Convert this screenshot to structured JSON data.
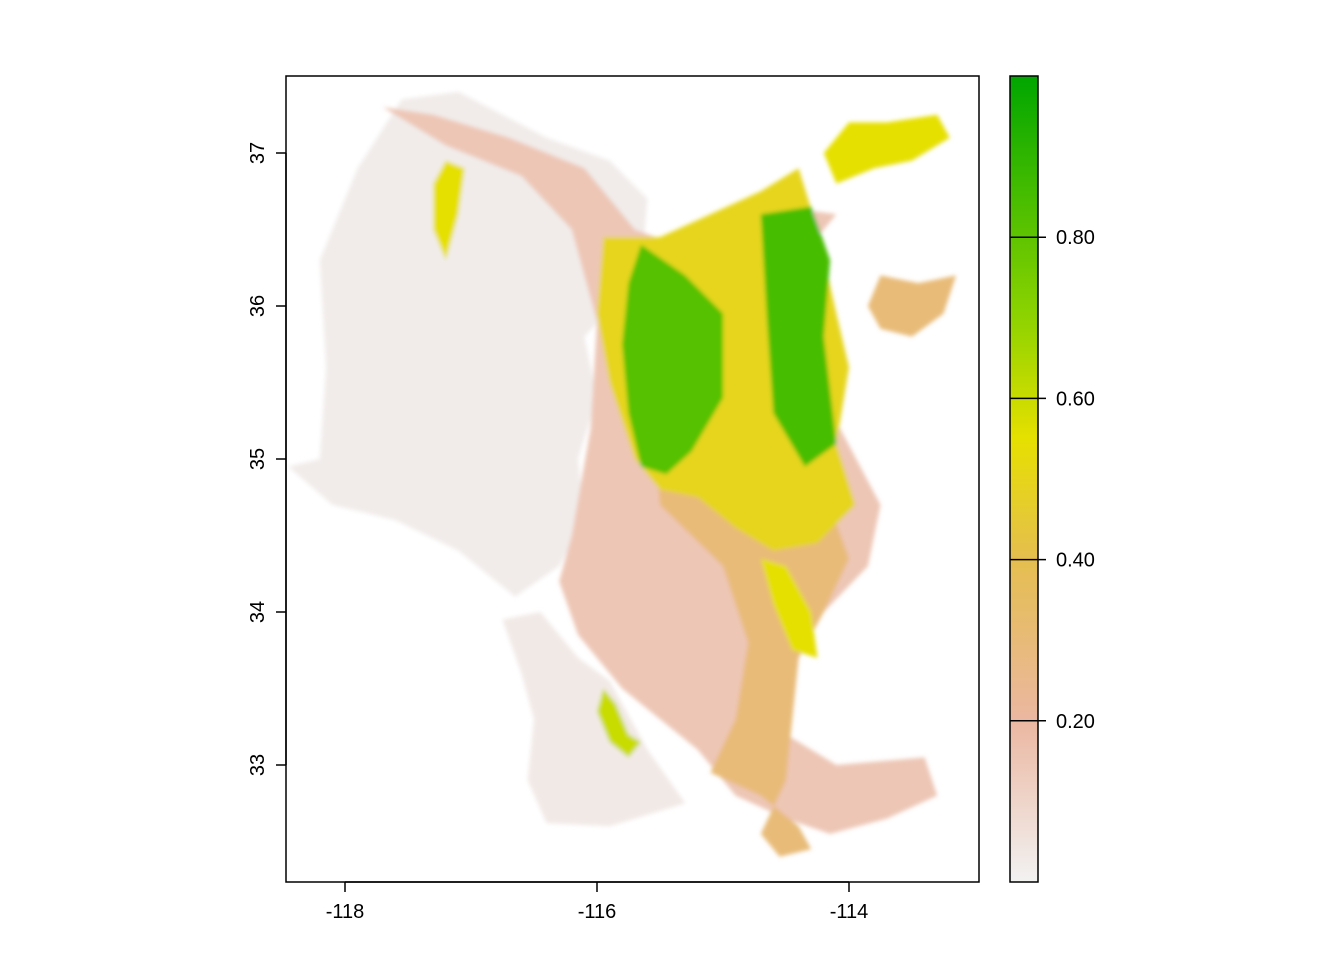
{
  "chart_data": {
    "type": "heatmap",
    "title": "",
    "xlabel": "",
    "ylabel": "",
    "xlim": [
      -118.5,
      -112.7
    ],
    "ylim": [
      32.25,
      37.5
    ],
    "x_ticks": [
      -118,
      -116,
      -114
    ],
    "x_tick_labels": [
      "-118",
      "-116",
      "-114"
    ],
    "y_ticks": [
      33,
      34,
      35,
      36,
      37
    ],
    "y_tick_labels": [
      "33",
      "34",
      "35",
      "36",
      "37"
    ],
    "legend": {
      "type": "continuous colorbar",
      "placement": "right",
      "range": [
        0,
        1
      ],
      "ticks": [
        0.2,
        0.4,
        0.6,
        0.8
      ],
      "tick_labels": [
        "0.20",
        "0.40",
        "0.60",
        "0.80"
      ],
      "colors": [
        "#f2f2f2",
        "#ebb7a1",
        "#e5be4f",
        "#e6e000",
        "#8ed300",
        "#00a600"
      ]
    },
    "series": [],
    "regions": [
      {
        "level": 0.02,
        "points": [
          [
            -118.45,
            34.95
          ],
          [
            -118.2,
            35.0
          ],
          [
            -118.15,
            35.6
          ],
          [
            -118.2,
            36.3
          ],
          [
            -117.9,
            36.9
          ],
          [
            -117.55,
            37.35
          ],
          [
            -117.1,
            37.4
          ],
          [
            -116.4,
            37.1
          ],
          [
            -115.9,
            36.95
          ],
          [
            -115.6,
            36.7
          ],
          [
            -115.65,
            36.2
          ],
          [
            -116.1,
            35.8
          ],
          [
            -116.0,
            35.4
          ],
          [
            -116.15,
            35.0
          ],
          [
            -116.1,
            34.6
          ],
          [
            -116.3,
            34.3
          ],
          [
            -116.65,
            34.1
          ],
          [
            -117.1,
            34.4
          ],
          [
            -117.6,
            34.6
          ],
          [
            -118.1,
            34.7
          ]
        ]
      },
      {
        "level": 0.03,
        "points": [
          [
            -116.75,
            33.95
          ],
          [
            -116.45,
            34.0
          ],
          [
            -116.15,
            33.7
          ],
          [
            -115.9,
            33.55
          ],
          [
            -115.6,
            33.1
          ],
          [
            -115.3,
            32.75
          ],
          [
            -115.9,
            32.6
          ],
          [
            -116.4,
            32.62
          ],
          [
            -116.55,
            32.9
          ],
          [
            -116.5,
            33.3
          ],
          [
            -116.6,
            33.6
          ]
        ]
      },
      {
        "level": 0.15,
        "points": [
          [
            -117.7,
            37.3
          ],
          [
            -117.2,
            37.05
          ],
          [
            -116.6,
            36.85
          ],
          [
            -116.2,
            36.5
          ],
          [
            -116.0,
            35.9
          ],
          [
            -116.05,
            35.2
          ],
          [
            -116.2,
            34.5
          ],
          [
            -116.3,
            34.2
          ],
          [
            -116.15,
            33.85
          ],
          [
            -115.8,
            33.5
          ],
          [
            -115.2,
            33.1
          ],
          [
            -114.9,
            32.8
          ],
          [
            -114.5,
            32.65
          ],
          [
            -114.15,
            32.55
          ],
          [
            -113.7,
            32.65
          ],
          [
            -113.3,
            32.8
          ],
          [
            -113.4,
            33.05
          ],
          [
            -114.1,
            33.0
          ],
          [
            -114.5,
            33.2
          ],
          [
            -114.4,
            33.7
          ],
          [
            -114.2,
            34.0
          ],
          [
            -113.85,
            34.3
          ],
          [
            -113.75,
            34.7
          ],
          [
            -114.2,
            35.4
          ],
          [
            -114.5,
            36.2
          ],
          [
            -114.1,
            36.6
          ],
          [
            -114.55,
            36.65
          ],
          [
            -114.7,
            36.3
          ],
          [
            -115.2,
            36.35
          ],
          [
            -115.7,
            36.5
          ],
          [
            -116.1,
            36.9
          ],
          [
            -116.7,
            37.1
          ],
          [
            -117.3,
            37.25
          ]
        ]
      },
      {
        "level": 0.3,
        "points": [
          [
            -115.5,
            34.7
          ],
          [
            -115.0,
            34.3
          ],
          [
            -114.8,
            33.8
          ],
          [
            -114.9,
            33.3
          ],
          [
            -115.1,
            32.95
          ],
          [
            -114.7,
            32.8
          ],
          [
            -114.4,
            32.6
          ],
          [
            -114.3,
            32.45
          ],
          [
            -114.55,
            32.4
          ],
          [
            -114.7,
            32.55
          ],
          [
            -114.5,
            32.9
          ],
          [
            -114.45,
            33.3
          ],
          [
            -114.4,
            33.7
          ],
          [
            -114.2,
            34.0
          ],
          [
            -114.0,
            34.35
          ],
          [
            -114.2,
            34.8
          ],
          [
            -114.25,
            35.4
          ],
          [
            -114.3,
            35.9
          ],
          [
            -114.6,
            36.3
          ],
          [
            -115.0,
            36.1
          ],
          [
            -115.4,
            35.8
          ],
          [
            -115.55,
            35.2
          ]
        ]
      },
      {
        "level": 0.5,
        "points": [
          [
            -115.95,
            36.45
          ],
          [
            -115.5,
            36.45
          ],
          [
            -115.1,
            36.6
          ],
          [
            -114.7,
            36.75
          ],
          [
            -114.4,
            36.9
          ],
          [
            -114.25,
            36.5
          ],
          [
            -114.1,
            35.95
          ],
          [
            -114.0,
            35.6
          ],
          [
            -114.1,
            35.1
          ],
          [
            -113.95,
            34.7
          ],
          [
            -114.25,
            34.45
          ],
          [
            -114.6,
            34.4
          ],
          [
            -114.9,
            34.55
          ],
          [
            -115.2,
            34.75
          ],
          [
            -115.5,
            34.8
          ],
          [
            -115.7,
            35.0
          ],
          [
            -115.9,
            35.5
          ],
          [
            -116.0,
            35.95
          ]
        ]
      },
      {
        "level": 0.82,
        "points": [
          [
            -115.65,
            36.4
          ],
          [
            -115.3,
            36.2
          ],
          [
            -115.0,
            35.95
          ],
          [
            -115.0,
            35.4
          ],
          [
            -115.25,
            35.05
          ],
          [
            -115.45,
            34.9
          ],
          [
            -115.65,
            34.95
          ],
          [
            -115.75,
            35.3
          ],
          [
            -115.8,
            35.75
          ],
          [
            -115.75,
            36.15
          ]
        ]
      },
      {
        "level": 0.85,
        "points": [
          [
            -114.7,
            36.6
          ],
          [
            -114.3,
            36.65
          ],
          [
            -114.15,
            36.3
          ],
          [
            -114.2,
            35.8
          ],
          [
            -114.1,
            35.1
          ],
          [
            -114.35,
            34.95
          ],
          [
            -114.6,
            35.3
          ],
          [
            -114.65,
            35.9
          ]
        ]
      },
      {
        "level": 0.55,
        "points": [
          [
            -114.0,
            37.2
          ],
          [
            -113.7,
            37.2
          ],
          [
            -113.3,
            37.25
          ],
          [
            -113.2,
            37.1
          ],
          [
            -113.5,
            36.95
          ],
          [
            -113.8,
            36.9
          ],
          [
            -114.1,
            36.8
          ],
          [
            -114.2,
            37.0
          ]
        ]
      },
      {
        "level": 0.6,
        "points": [
          [
            -115.95,
            33.5
          ],
          [
            -115.85,
            33.4
          ],
          [
            -115.75,
            33.2
          ],
          [
            -115.65,
            33.15
          ],
          [
            -115.75,
            33.05
          ],
          [
            -115.9,
            33.15
          ],
          [
            -116.0,
            33.35
          ]
        ]
      },
      {
        "level": 0.3,
        "points": [
          [
            -113.75,
            36.2
          ],
          [
            -113.45,
            36.15
          ],
          [
            -113.15,
            36.2
          ],
          [
            -113.25,
            35.95
          ],
          [
            -113.5,
            35.8
          ],
          [
            -113.75,
            35.85
          ],
          [
            -113.85,
            36.0
          ]
        ]
      },
      {
        "level": 0.55,
        "points": [
          [
            -117.2,
            36.95
          ],
          [
            -117.05,
            36.9
          ],
          [
            -117.1,
            36.6
          ],
          [
            -117.2,
            36.3
          ],
          [
            -117.3,
            36.5
          ],
          [
            -117.3,
            36.8
          ]
        ]
      },
      {
        "level": 0.55,
        "points": [
          [
            -114.7,
            34.35
          ],
          [
            -114.5,
            34.3
          ],
          [
            -114.3,
            34.0
          ],
          [
            -114.25,
            33.7
          ],
          [
            -114.45,
            33.75
          ],
          [
            -114.6,
            34.05
          ]
        ]
      }
    ]
  }
}
